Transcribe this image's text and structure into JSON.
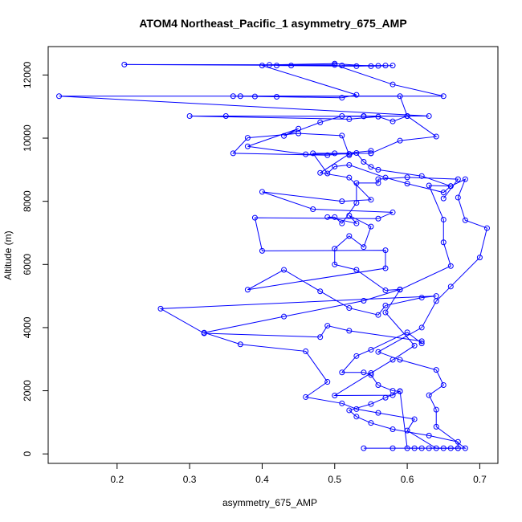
{
  "chart_data": {
    "type": "line",
    "title": "ATOM4 Northeast_Pacific_1 asymmetry_675_AMP",
    "xlabel": "asymmetry_675_AMP",
    "ylabel": "Altitude (m)",
    "xlim": [
      0.105,
      0.725
    ],
    "ylim": [
      -300,
      12900
    ],
    "xticks": [
      0.2,
      0.3,
      0.4,
      0.5,
      0.6,
      0.7
    ],
    "xtick_labels": [
      "0.2",
      "0.3",
      "0.4",
      "0.5",
      "0.6",
      "0.7"
    ],
    "yticks": [
      0,
      2000,
      4000,
      6000,
      8000,
      10000,
      12000
    ],
    "ytick_labels": [
      "0",
      "2000",
      "4000",
      "6000",
      "8000",
      "10000",
      "12000"
    ],
    "grid": false,
    "legend": "none",
    "series": [
      {
        "color": "#0000ff",
        "marker": "open-circle",
        "line": true,
        "points": [
          [
            0.54,
            180
          ],
          [
            0.58,
            180
          ],
          [
            0.61,
            180
          ],
          [
            0.65,
            180
          ],
          [
            0.67,
            180
          ],
          [
            0.67,
            380
          ],
          [
            0.63,
            580
          ],
          [
            0.58,
            780
          ],
          [
            0.55,
            980
          ],
          [
            0.53,
            1180
          ],
          [
            0.52,
            1380
          ],
          [
            0.55,
            1580
          ],
          [
            0.57,
            1780
          ],
          [
            0.59,
            1980
          ],
          [
            0.58,
            2000
          ],
          [
            0.56,
            2180
          ],
          [
            0.55,
            2500
          ],
          [
            0.54,
            2580
          ],
          [
            0.51,
            2580
          ],
          [
            0.53,
            3100
          ],
          [
            0.55,
            3300
          ],
          [
            0.6,
            3850
          ],
          [
            0.62,
            3500
          ],
          [
            0.62,
            3570
          ],
          [
            0.52,
            3900
          ],
          [
            0.49,
            4060
          ],
          [
            0.48,
            3700
          ],
          [
            0.32,
            3820
          ],
          [
            0.26,
            4600
          ],
          [
            0.64,
            5000
          ],
          [
            0.62,
            4950
          ],
          [
            0.57,
            4700
          ],
          [
            0.56,
            4400
          ],
          [
            0.52,
            4620
          ],
          [
            0.48,
            5150
          ],
          [
            0.43,
            5830
          ],
          [
            0.38,
            5200
          ],
          [
            0.57,
            5880
          ],
          [
            0.57,
            6450
          ],
          [
            0.4,
            6430
          ],
          [
            0.39,
            7480
          ],
          [
            0.56,
            7450
          ],
          [
            0.58,
            7650
          ],
          [
            0.47,
            7750
          ],
          [
            0.4,
            8300
          ],
          [
            0.51,
            8000
          ],
          [
            0.55,
            8050
          ],
          [
            0.52,
            8750
          ],
          [
            0.48,
            8900
          ],
          [
            0.52,
            9500
          ],
          [
            0.46,
            9490
          ],
          [
            0.38,
            9740
          ],
          [
            0.45,
            10300
          ],
          [
            0.43,
            10070
          ],
          [
            0.48,
            10500
          ],
          [
            0.51,
            10700
          ],
          [
            0.54,
            10700
          ],
          [
            0.63,
            10700
          ],
          [
            0.12,
            11330
          ],
          [
            0.65,
            11330
          ],
          [
            0.58,
            11700
          ],
          [
            0.5,
            12320
          ],
          [
            0.21,
            12330
          ],
          [
            0.56,
            12290
          ],
          [
            0.51,
            12300
          ],
          [
            0.57,
            12300
          ],
          [
            0.53,
            12280
          ],
          [
            0.42,
            12300
          ],
          [
            0.44,
            12300
          ]
        ]
      },
      {
        "color": "#0000ff",
        "marker": "open-circle",
        "line": true,
        "points": [
          [
            0.63,
            180
          ],
          [
            0.66,
            180
          ],
          [
            0.68,
            180
          ],
          [
            0.64,
            860
          ],
          [
            0.64,
            1400
          ],
          [
            0.63,
            1860
          ],
          [
            0.65,
            2180
          ],
          [
            0.64,
            2660
          ],
          [
            0.59,
            2980
          ],
          [
            0.56,
            3230
          ],
          [
            0.62,
            4000
          ],
          [
            0.64,
            4840
          ],
          [
            0.66,
            5300
          ],
          [
            0.7,
            6220
          ],
          [
            0.71,
            7150
          ],
          [
            0.68,
            7400
          ],
          [
            0.67,
            8120
          ],
          [
            0.68,
            8700
          ],
          [
            0.66,
            8480
          ],
          [
            0.65,
            8280
          ],
          [
            0.6,
            8560
          ],
          [
            0.57,
            8750
          ],
          [
            0.52,
            9150
          ],
          [
            0.5,
            9100
          ],
          [
            0.49,
            8880
          ],
          [
            0.47,
            9520
          ],
          [
            0.5,
            9520
          ],
          [
            0.55,
            9520
          ],
          [
            0.59,
            9920
          ],
          [
            0.64,
            10050
          ],
          [
            0.6,
            10700
          ],
          [
            0.54,
            10690
          ],
          [
            0.35,
            10700
          ],
          [
            0.3,
            10700
          ],
          [
            0.52,
            10600
          ],
          [
            0.56,
            10680
          ],
          [
            0.58,
            10530
          ],
          [
            0.6,
            10700
          ],
          [
            0.59,
            11330
          ],
          [
            0.37,
            11330
          ],
          [
            0.36,
            11330
          ],
          [
            0.39,
            11320
          ],
          [
            0.42,
            11310
          ],
          [
            0.51,
            11280
          ],
          [
            0.53,
            11370
          ],
          [
            0.4,
            12300
          ],
          [
            0.41,
            12320
          ],
          [
            0.5,
            12360
          ],
          [
            0.55,
            12280
          ],
          [
            0.58,
            12300
          ]
        ]
      },
      {
        "color": "#0000ff",
        "marker": "open-circle",
        "line": true,
        "points": [
          [
            0.62,
            180
          ],
          [
            0.6,
            180
          ],
          [
            0.59,
            1990
          ],
          [
            0.58,
            1860
          ],
          [
            0.5,
            1850
          ],
          [
            0.55,
            2560
          ],
          [
            0.58,
            2980
          ],
          [
            0.61,
            3430
          ],
          [
            0.57,
            4480
          ],
          [
            0.59,
            5200
          ],
          [
            0.66,
            5950
          ],
          [
            0.65,
            6700
          ],
          [
            0.65,
            7420
          ],
          [
            0.63,
            8500
          ],
          [
            0.66,
            8480
          ],
          [
            0.62,
            8800
          ],
          [
            0.56,
            9000
          ],
          [
            0.55,
            9090
          ],
          [
            0.54,
            9250
          ],
          [
            0.53,
            9530
          ],
          [
            0.52,
            9460
          ],
          [
            0.51,
            10080
          ],
          [
            0.45,
            10150
          ],
          [
            0.38,
            10010
          ],
          [
            0.36,
            9520
          ],
          [
            0.49,
            9460
          ],
          [
            0.55,
            9600
          ],
          [
            0.55,
            9520
          ]
        ]
      },
      {
        "color": "#0000ff",
        "marker": "open-circle",
        "line": true,
        "points": [
          [
            0.67,
            180
          ],
          [
            0.64,
            180
          ],
          [
            0.6,
            740
          ],
          [
            0.61,
            1100
          ],
          [
            0.56,
            1300
          ],
          [
            0.53,
            1420
          ],
          [
            0.51,
            1600
          ],
          [
            0.46,
            1800
          ],
          [
            0.49,
            2280
          ],
          [
            0.46,
            3250
          ],
          [
            0.37,
            3470
          ],
          [
            0.32,
            3840
          ],
          [
            0.43,
            4350
          ],
          [
            0.54,
            4850
          ],
          [
            0.59,
            5210
          ],
          [
            0.57,
            5180
          ],
          [
            0.53,
            5830
          ],
          [
            0.5,
            6000
          ],
          [
            0.5,
            6500
          ],
          [
            0.52,
            6900
          ],
          [
            0.54,
            6550
          ],
          [
            0.55,
            7200
          ],
          [
            0.52,
            7550
          ],
          [
            0.53,
            7300
          ],
          [
            0.49,
            7500
          ],
          [
            0.5,
            7500
          ],
          [
            0.51,
            7300
          ],
          [
            0.53,
            7950
          ],
          [
            0.53,
            8580
          ],
          [
            0.56,
            8580
          ],
          [
            0.56,
            8700
          ],
          [
            0.6,
            8760
          ],
          [
            0.67,
            8700
          ],
          [
            0.65,
            8090
          ]
        ]
      }
    ]
  }
}
